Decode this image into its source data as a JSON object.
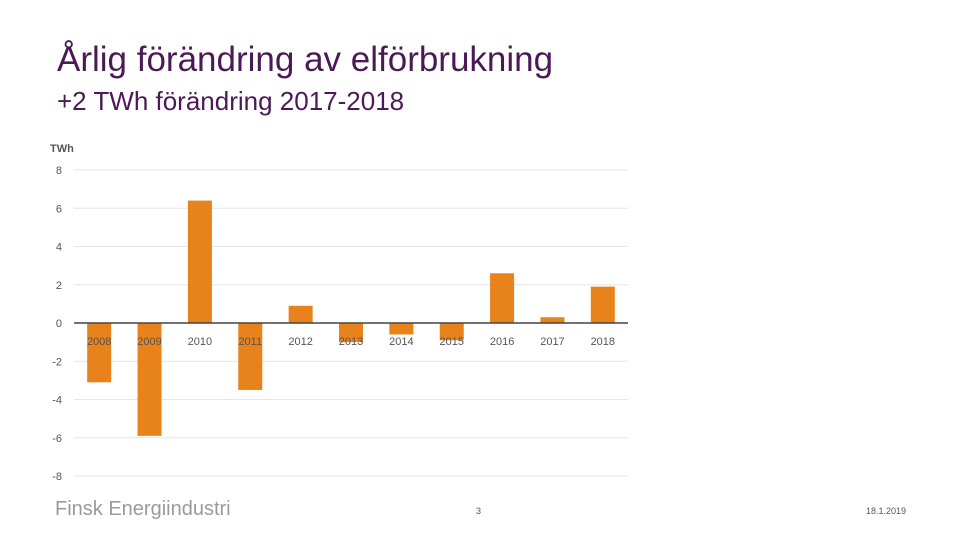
{
  "slide": {
    "title": "Årlig förändring av elförbrukning",
    "subtitle": "+2 TWh förändring 2017-2018"
  },
  "chart_data": {
    "type": "bar",
    "ylabel": "TWh",
    "categories": [
      "2008",
      "2009",
      "2010",
      "2011",
      "2012",
      "2013",
      "2014",
      "2015",
      "2016",
      "2017",
      "2018"
    ],
    "values": [
      -3.1,
      -5.9,
      6.4,
      -3.5,
      0.9,
      -1.0,
      -0.6,
      -0.9,
      2.6,
      0.3,
      1.9
    ],
    "ylim": [
      -8,
      8
    ],
    "yticks": [
      "8",
      "6",
      "4",
      "2",
      "0",
      "-2",
      "-4",
      "-6",
      "-8"
    ],
    "grid": true,
    "bar_color": "#e8821a"
  },
  "footer": {
    "logo_text": "Finsk Energiindustri",
    "page_number": "3",
    "date": "18.1.2019"
  }
}
